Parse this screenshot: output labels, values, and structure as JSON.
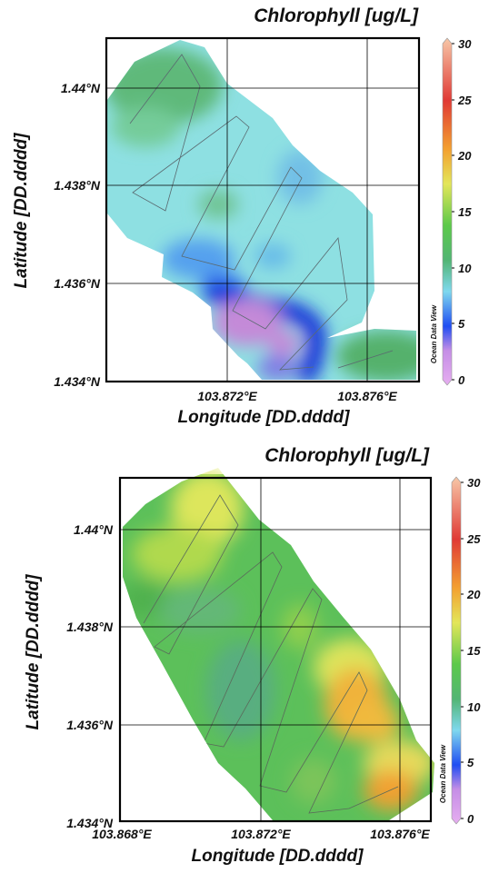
{
  "panels": [
    {
      "title": "Chlorophyll [ug/L]",
      "xlabel": "Longitude [DD.dddd]",
      "ylabel": "Latitude [DD.dddd]",
      "xticks": [
        "103.872°E",
        "103.876°E"
      ],
      "yticks": [
        "1.44°N",
        "1.438°N",
        "1.436°N",
        "1.434°N"
      ],
      "colorbar_ticks": [
        "30",
        "25",
        "20",
        "15",
        "10",
        "5",
        "0"
      ],
      "watermark": "Ocean Data View"
    },
    {
      "title": "Chlorophyll [ug/L]",
      "xlabel": "Longitude [DD.dddd]",
      "ylabel": "Latitude [DD.dddd]",
      "xticks": [
        "103.868°E",
        "103.872°E",
        "103.876°E"
      ],
      "yticks": [
        "1.44°N",
        "1.438°N",
        "1.436°N",
        "1.434°N"
      ],
      "colorbar_ticks": [
        "30",
        "25",
        "20",
        "15",
        "10",
        "5",
        "0"
      ],
      "watermark": "Ocean Data View"
    }
  ],
  "chart_data": [
    {
      "type": "heatmap",
      "variable": "Chlorophyll",
      "units": "ug/L",
      "colorbar_range": [
        0,
        30
      ],
      "lat_range": [
        1.434,
        1.441
      ],
      "approx_value_range": [
        2,
        12
      ],
      "description": ""
    },
    {
      "type": "heatmap",
      "variable": "Chlorophyll",
      "units": "ug/L",
      "colorbar_range": [
        0,
        30
      ],
      "lat_range": [
        1.434,
        1.441
      ],
      "lon_range": [
        103.868,
        103.877
      ],
      "approx_value_range": [
        10,
        20
      ],
      "description": ""
    }
  ]
}
